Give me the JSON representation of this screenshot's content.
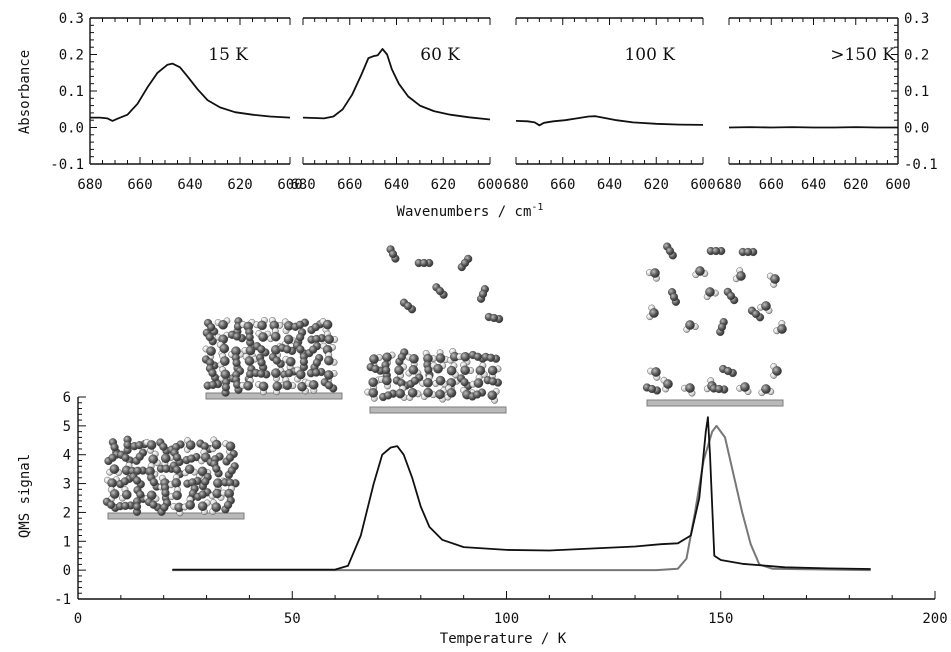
{
  "chart_data": [
    {
      "type": "line",
      "panel": "spectra",
      "xlabel": "Wavenumbers / cm",
      "xlabel_superscript": "-1",
      "ylabel": "Absorbance",
      "xlim": [
        680,
        600
      ],
      "ylim": [
        -0.1,
        0.3
      ],
      "x_ticks": [
        "680",
        "660",
        "640",
        "620",
        "600"
      ],
      "y_ticks": [
        "-0.1",
        "0.0",
        "0.1",
        "0.2",
        "0.3"
      ],
      "series": [
        {
          "name": "15 K",
          "points": [
            [
              680,
              0.027
            ],
            [
              676,
              0.027
            ],
            [
              673,
              0.025
            ],
            [
              671,
              0.018
            ],
            [
              669,
              0.024
            ],
            [
              665,
              0.035
            ],
            [
              661,
              0.065
            ],
            [
              657,
              0.11
            ],
            [
              653,
              0.15
            ],
            [
              649,
              0.172
            ],
            [
              647,
              0.175
            ],
            [
              644,
              0.165
            ],
            [
              641,
              0.14
            ],
            [
              637,
              0.105
            ],
            [
              633,
              0.075
            ],
            [
              628,
              0.055
            ],
            [
              622,
              0.042
            ],
            [
              615,
              0.035
            ],
            [
              608,
              0.03
            ],
            [
              600,
              0.027
            ]
          ]
        },
        {
          "name": "60 K",
          "points": [
            [
              680,
              0.027
            ],
            [
              675,
              0.026
            ],
            [
              671,
              0.025
            ],
            [
              667,
              0.03
            ],
            [
              663,
              0.05
            ],
            [
              659,
              0.09
            ],
            [
              655,
              0.145
            ],
            [
              652,
              0.19
            ],
            [
              650,
              0.195
            ],
            [
              648,
              0.198
            ],
            [
              646,
              0.215
            ],
            [
              644,
              0.2
            ],
            [
              642,
              0.16
            ],
            [
              639,
              0.12
            ],
            [
              635,
              0.085
            ],
            [
              630,
              0.06
            ],
            [
              624,
              0.045
            ],
            [
              617,
              0.035
            ],
            [
              609,
              0.028
            ],
            [
              600,
              0.022
            ]
          ]
        },
        {
          "name": "100 K",
          "points": [
            [
              680,
              0.018
            ],
            [
              675,
              0.017
            ],
            [
              672,
              0.014
            ],
            [
              670,
              0.006
            ],
            [
              668,
              0.013
            ],
            [
              664,
              0.017
            ],
            [
              659,
              0.02
            ],
            [
              654,
              0.025
            ],
            [
              649,
              0.03
            ],
            [
              646,
              0.031
            ],
            [
              642,
              0.026
            ],
            [
              637,
              0.02
            ],
            [
              630,
              0.014
            ],
            [
              620,
              0.01
            ],
            [
              610,
              0.008
            ],
            [
              600,
              0.007
            ]
          ]
        },
        {
          "name": ">150 K",
          "points": [
            [
              680,
              0.0
            ],
            [
              670,
              0.001
            ],
            [
              660,
              0.0
            ],
            [
              650,
              0.001
            ],
            [
              640,
              0.0
            ],
            [
              630,
              0.0
            ],
            [
              620,
              0.001
            ],
            [
              610,
              0.0
            ],
            [
              600,
              0.0
            ]
          ]
        }
      ]
    },
    {
      "type": "line",
      "panel": "desorption",
      "xlabel": "Temperature / K",
      "ylabel": "QMS signal",
      "xlim": [
        0,
        200
      ],
      "ylim": [
        -1,
        6
      ],
      "x_ticks": [
        "0",
        "50",
        "100",
        "150",
        "200"
      ],
      "y_ticks": [
        "-1",
        "0",
        "1",
        "2",
        "3",
        "4",
        "5",
        "6"
      ],
      "series": [
        {
          "color": "#111111",
          "points": [
            [
              22,
              0.02
            ],
            [
              60,
              0.02
            ],
            [
              63,
              0.15
            ],
            [
              66,
              1.2
            ],
            [
              69,
              3.0
            ],
            [
              71,
              4.0
            ],
            [
              73,
              4.25
            ],
            [
              74.5,
              4.3
            ],
            [
              76,
              4.0
            ],
            [
              78,
              3.2
            ],
            [
              80,
              2.2
            ],
            [
              82,
              1.5
            ],
            [
              85,
              1.05
            ],
            [
              90,
              0.8
            ],
            [
              100,
              0.7
            ],
            [
              110,
              0.68
            ],
            [
              120,
              0.75
            ],
            [
              130,
              0.82
            ],
            [
              136,
              0.9
            ],
            [
              140,
              0.93
            ],
            [
              143,
              1.2
            ],
            [
              145,
              2.5
            ],
            [
              146.5,
              4.8
            ],
            [
              147,
              5.3
            ],
            [
              147.5,
              4.0
            ],
            [
              148.5,
              0.5
            ],
            [
              150,
              0.35
            ],
            [
              155,
              0.22
            ],
            [
              165,
              0.1
            ],
            [
              175,
              0.06
            ],
            [
              185,
              0.04
            ]
          ]
        },
        {
          "color": "#777777",
          "points": [
            [
              22,
              0.0
            ],
            [
              135,
              0.0
            ],
            [
              140,
              0.05
            ],
            [
              142,
              0.4
            ],
            [
              144,
              2.0
            ],
            [
              146,
              3.8
            ],
            [
              148,
              4.8
            ],
            [
              149,
              5.0
            ],
            [
              151,
              4.6
            ],
            [
              153,
              3.3
            ],
            [
              155,
              2.0
            ],
            [
              157,
              0.9
            ],
            [
              159,
              0.2
            ],
            [
              162,
              0.05
            ],
            [
              170,
              0.03
            ],
            [
              185,
              0.0
            ]
          ]
        }
      ]
    }
  ]
}
